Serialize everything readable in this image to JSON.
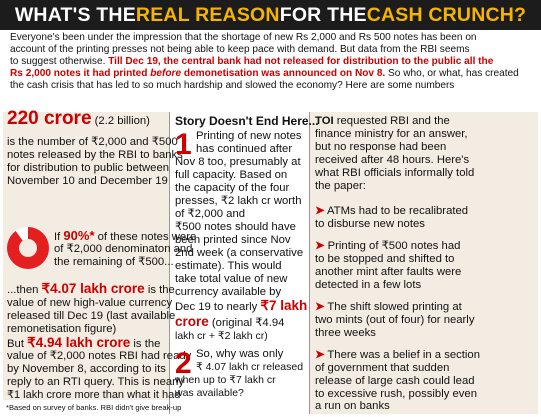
{
  "banner": {
    "part1": "WHAT'S THE ",
    "part2": "REAL REASON",
    "part3": " FOR THE ",
    "part4": "CASH CRUNCH?"
  },
  "intro": {
    "line1": "Everyone's been under the impression that the shortage of new Rs 2,000 and Rs 500 notes has been on",
    "line2": "account of the printing presses not being able to keep pace with demand. But data from the RBI seems",
    "line3a": "to suggest otherwise. ",
    "line3b": "Till Dec 19, the central bank had not released for distribution to the public all the",
    "line4a": "Rs 2,000 notes it had printed ",
    "line4b": "before",
    "line4c": " demonetisation was announced on Nov 8.",
    "line4d": " So who, or what, has created",
    "line5": "the cash crisis that has led to so much hardship and slowed the economy? Here are some numbers"
  },
  "col1": {
    "big_value": "220 crore",
    "big_sub": " (2.2 billion)",
    "l2": "is the number of ₹2,000 and ₹500",
    "l3": "notes released by the RBI to banks",
    "l4": "for distribution to public between",
    "l5": "November 10 and December 19",
    "if_word": "If ",
    "pct_value": "90%*",
    "pct_rest": " of these notes were",
    "pct_l2": "of ₹2,000 denominaton and",
    "pct_l3": "the remaining of ₹500...",
    "then_prefix": "...then ",
    "then_value": "₹4.07 lakh crore",
    "then_rest": " is the",
    "then_l2": "value of new high-value currency",
    "then_l3": "released till Dec 19 (last available",
    "then_l4": "remonetisation figure)",
    "but_prefix": "But ",
    "but_value": "₹4.94 lakh crore",
    "but_rest": " is the",
    "but_l2": "value of ₹2,000 notes RBI had ready",
    "but_l3": "by November 8, according to its",
    "but_l4": "reply to an RTI query. This is nearly",
    "but_l5": "₹1 lakh crore more than what it had",
    "but_l6": "released till Dec 19. Why?",
    "footnote": "*Based on survey of banks. RBI didn't give break-up"
  },
  "col2": {
    "heading": "Story Doesn't End Here...",
    "num1": "1",
    "p1_l1": "Printing of new notes",
    "p1_l2": "has continued after",
    "p1_l3": "Nov 8 too, presumably at",
    "p1_l4": "full capacity. Based on",
    "p1_l5": "the capacity of the four",
    "p1_l6": "presses, ₹2 lakh cr worth",
    "p1_l7": "of ₹2,000 and",
    "p1_l8": "₹500 notes should have",
    "p1_l9": "been printed since Nov",
    "p1_l10": "2nd week (a conservative",
    "p1_l11": "estimate). This would",
    "p1_l12": "take total value of new",
    "p1_l13": "currency available by",
    "p1_l14a": "Dec 19 to nearly ",
    "p1_l14b": "₹7 lakh",
    "p1_l15a": "crore",
    "p1_l15b": " (original ₹4.94",
    "p1_l16": "lakh cr + ₹2 lakh cr)",
    "num2": "2",
    "p2_l1": "So, why was only",
    "p2_l2": "₹ 4.07 lakh cr released",
    "p2_l3": "when up to ₹7 lakh cr",
    "p2_l4": "was available?"
  },
  "col3": {
    "toi": "TOI",
    "l1": " requested RBI and the",
    "l2": "finance ministry for an answer,",
    "l3": "but no response had been",
    "l4": "received after 48 hours. Here's",
    "l5": "what RBI officials informally told",
    "l6": "the paper:",
    "arrow": "➤",
    "b1_l1": " ATMs had to be recalibrated",
    "b1_l2": "to disburse new notes",
    "b2_l1": " Printing of ₹500 notes had",
    "b2_l2": "to be stopped and shifted to",
    "b2_l3": "another mint after faults were",
    "b2_l4": "detected in a few lots",
    "b3_l1": " The shift slowed printing at",
    "b3_l2": "two mints (out of four) for nearly",
    "b3_l3": "three weeks",
    "b4_l1": " There was a belief in a section",
    "b4_l2": "of government that sudden",
    "b4_l3": "release of large cash could lead",
    "b4_l4": "to excessive rush, possibly even",
    "b4_l5": "a run on banks"
  },
  "colors": {
    "accent_red": "#cc0000",
    "banner_bg": "#1c1c1c",
    "banner_highlight": "#f4b400",
    "panel_bg": "#f3ece2"
  }
}
